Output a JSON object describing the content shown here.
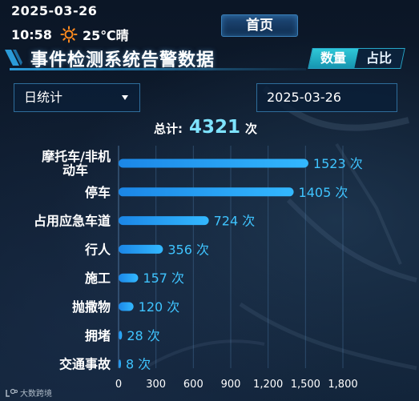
{
  "header": {
    "date": "2025-03-26",
    "time": "10:58",
    "weather": "25℃晴",
    "weather_icon": "sun-icon",
    "home_tab": "首页"
  },
  "title": {
    "text": "事件检测系统告警数据",
    "toggle": [
      "数量",
      "占比"
    ],
    "toggle_active": 0
  },
  "filters": {
    "period": "日统计",
    "date": "2025-03-26"
  },
  "total": {
    "label": "总计:",
    "value": "4321",
    "unit": "次"
  },
  "watermark": "大数跨境",
  "colors": {
    "bar_start": "#1b86e6",
    "bar_end": "#33b8ff",
    "value_text": "#3fc4ff",
    "accent": "#2fc8d8"
  },
  "chart_data": {
    "type": "bar",
    "orientation": "horizontal",
    "categories": [
      "摩托车/非机动车",
      "停车",
      "占用应急车道",
      "行人",
      "施工",
      "抛撒物",
      "拥堵",
      "交通事故"
    ],
    "values": [
      1523,
      1405,
      724,
      356,
      157,
      120,
      28,
      8
    ],
    "value_unit": "次",
    "xlim": [
      0,
      1800
    ],
    "xticks": [
      "0",
      "300",
      "600",
      "900",
      "1,200",
      "1,500",
      "1,800"
    ],
    "grid": true,
    "legend": "none"
  }
}
